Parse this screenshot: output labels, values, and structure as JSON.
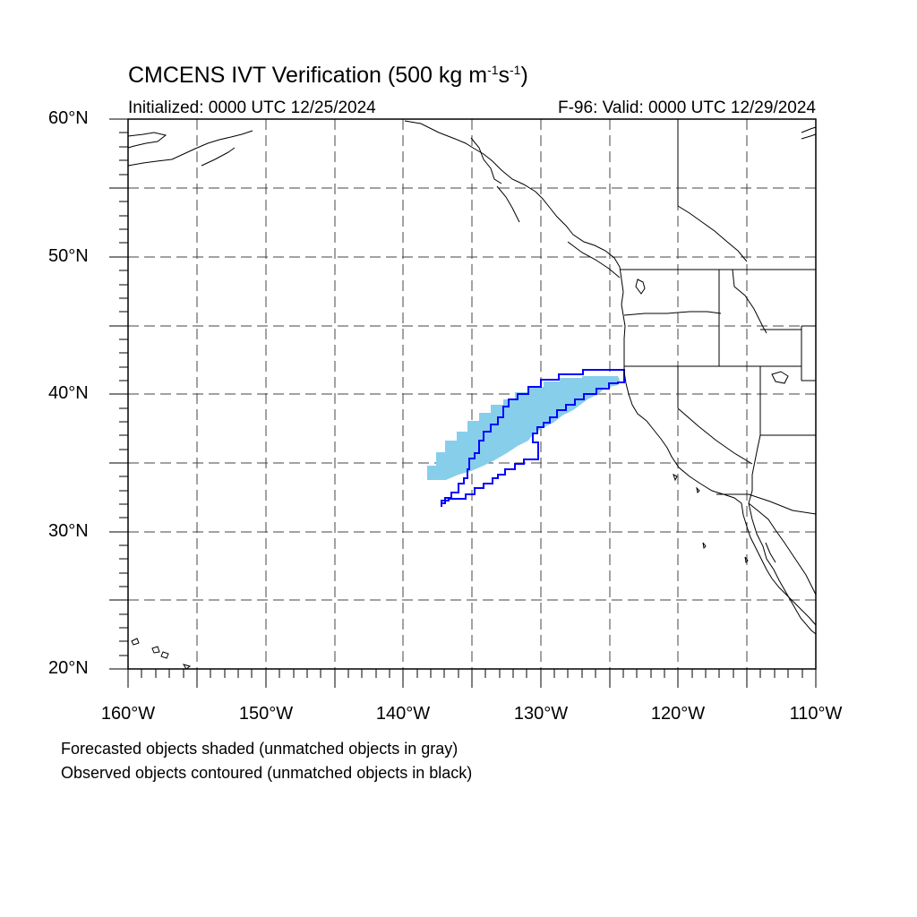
{
  "title": {
    "main": "CMCENS IVT Verification (500 kg m",
    "exp1": "-1",
    "mid": "s",
    "exp2": "-1",
    "end": ")"
  },
  "initialized": "Initialized: 0000 UTC 12/25/2024",
  "valid": "F-96: Valid: 0000 UTC 12/29/2024",
  "lat_labels": [
    "60°N",
    "50°N",
    "40°N",
    "30°N",
    "20°N"
  ],
  "lon_labels": [
    "160°W",
    "150°W",
    "140°W",
    "130°W",
    "120°W",
    "110°W"
  ],
  "notes": [
    "Forecasted objects shaded (unmatched objects in gray)",
    "Observed objects contoured (unmatched objects in black)"
  ],
  "colors": {
    "forecast_fill": "#87ceeb",
    "observed_contour": "#0000ff",
    "coastline": "#000000",
    "grid": "#444444"
  }
}
